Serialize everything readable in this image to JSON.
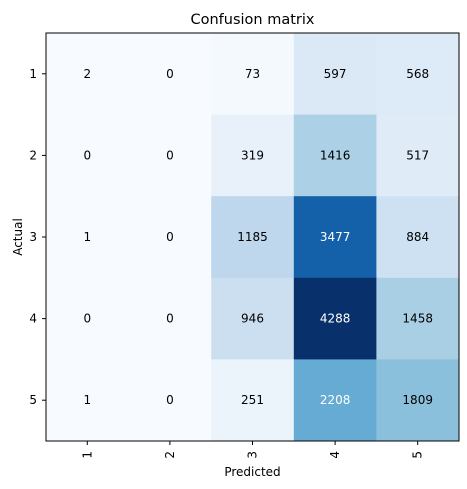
{
  "chart_data": {
    "type": "heatmap",
    "title": "Confusion matrix",
    "xlabel": "Predicted",
    "ylabel": "Actual",
    "x_categories": [
      "1",
      "2",
      "3",
      "4",
      "5"
    ],
    "y_categories": [
      "1",
      "2",
      "3",
      "4",
      "5"
    ],
    "values": [
      [
        2,
        0,
        73,
        597,
        568
      ],
      [
        0,
        0,
        319,
        1416,
        517
      ],
      [
        1,
        0,
        1185,
        3477,
        884
      ],
      [
        0,
        0,
        946,
        4288,
        1458
      ],
      [
        1,
        0,
        251,
        2208,
        1809
      ]
    ],
    "colormap": "Blues",
    "color_low": "#f7fbff",
    "color_high": "#08306b",
    "text_color_dark": "#000000",
    "text_color_light": "#ffffff",
    "x_tick_rotation": "vertical",
    "grid": false,
    "legend": "none"
  }
}
